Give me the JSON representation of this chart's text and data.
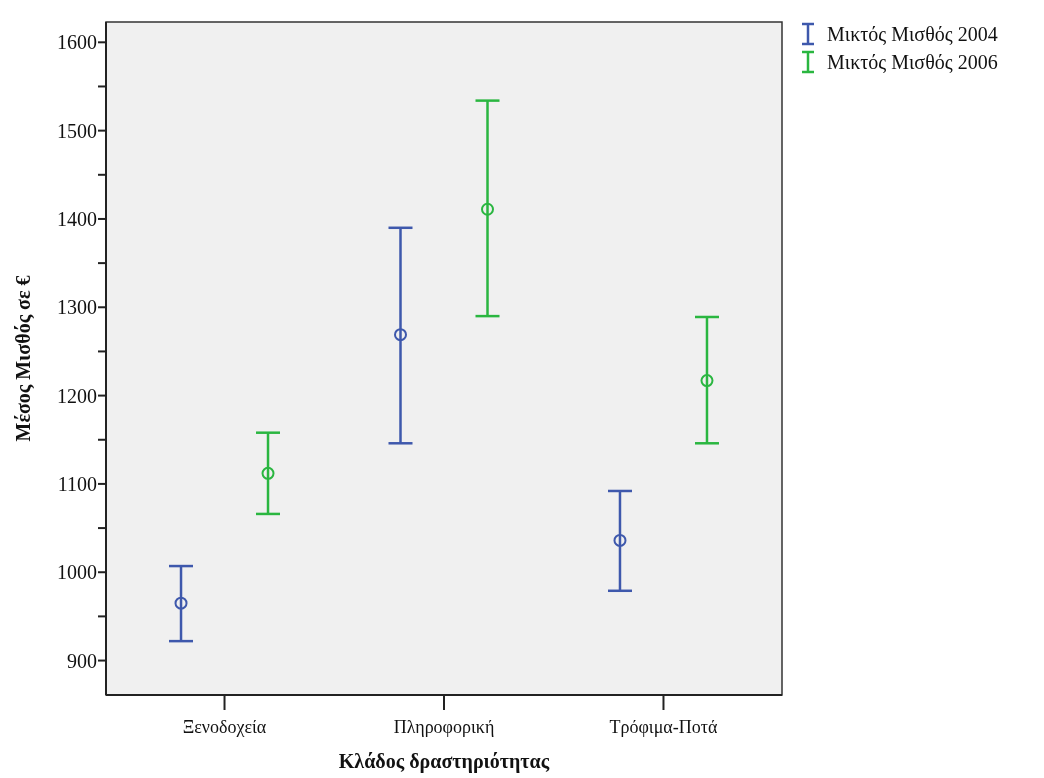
{
  "chart_data": {
    "type": "scatter",
    "xlabel": "Κλάδος δραστηριότητας",
    "ylabel": "Μέσος Μισθός σε €",
    "categories": [
      "Ξενοδοχεία",
      "Πληροφορική",
      "Τρόφιμα-Ποτά"
    ],
    "series": [
      {
        "name": "Μικτός Μισθός 2004",
        "color": "#3e58ac",
        "values": [
          965,
          1269,
          1036
        ],
        "errors": [
          [
            922,
            1007
          ],
          [
            1146,
            1390
          ],
          [
            979,
            1092
          ]
        ]
      },
      {
        "name": "Μικτός Μισθός 2006",
        "color": "#2ab640",
        "values": [
          1112,
          1411,
          1217
        ],
        "errors": [
          [
            1066,
            1158
          ],
          [
            1290,
            1534
          ],
          [
            1146,
            1289
          ]
        ]
      }
    ],
    "ylim": [
      861,
      1623
    ],
    "yticks": [
      900,
      {
        "value": 950,
        "label": null
      },
      1000,
      {
        "value": 1050,
        "label": null
      },
      1100,
      {
        "value": 1150,
        "label": null
      },
      1200,
      {
        "value": 1250,
        "label": null
      },
      1300,
      {
        "value": 1350,
        "label": null
      },
      1400,
      {
        "value": 1450,
        "label": null
      },
      1500,
      {
        "value": 1550,
        "label": null
      },
      1600
    ],
    "marker": "circle",
    "grid": false,
    "legend": "top right"
  }
}
